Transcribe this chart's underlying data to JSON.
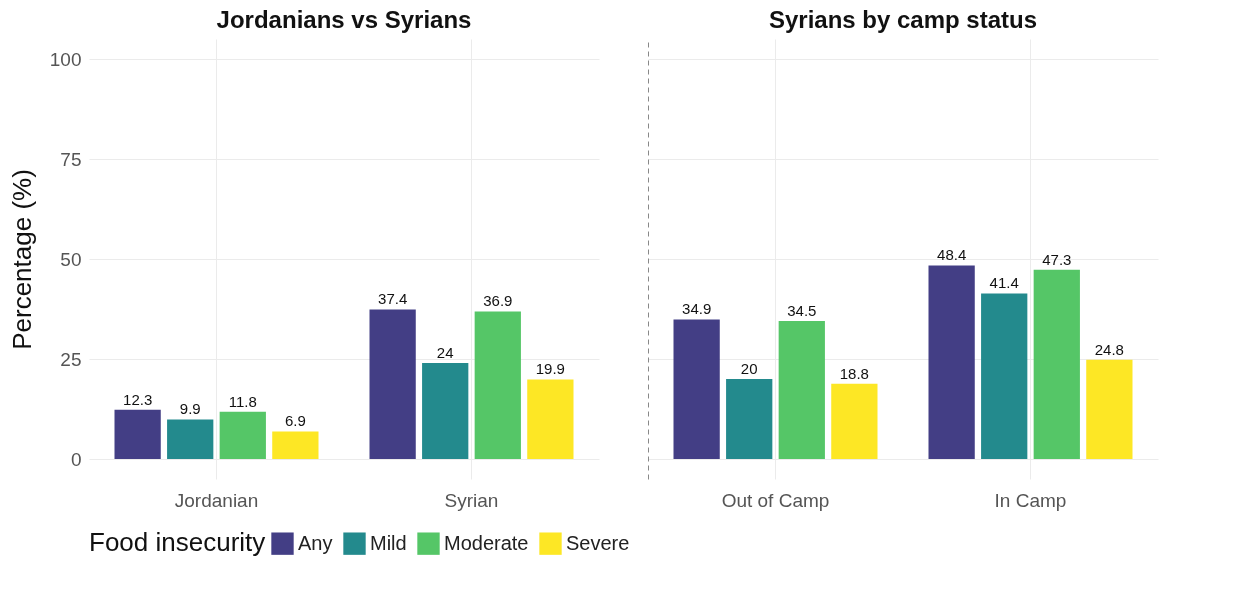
{
  "chart_data": [
    {
      "type": "bar",
      "title": "Jordanians vs Syrians",
      "ylabel": "Percentage (%)",
      "legend_title": "Food insecurity",
      "categories": [
        "Jordanian",
        "Syrian"
      ],
      "series": [
        {
          "name": "Any",
          "color": "#433e85",
          "values": [
            12.3,
            37.4
          ]
        },
        {
          "name": "Mild",
          "color": "#238a8d",
          "values": [
            9.9,
            24
          ]
        },
        {
          "name": "Moderate",
          "color": "#55c667",
          "values": [
            11.8,
            36.9
          ]
        },
        {
          "name": "Severe",
          "color": "#fde725",
          "values": [
            6.9,
            19.9
          ]
        }
      ],
      "ylim": [
        -5,
        105
      ],
      "yticks": [
        0,
        25,
        50,
        75,
        100
      ],
      "grid": true,
      "legend": "bottom",
      "data_labels": true
    },
    {
      "type": "bar",
      "title": "Syrians by camp status",
      "categories": [
        "Out of Camp",
        "In Camp"
      ],
      "series": [
        {
          "name": "Any",
          "color": "#433e85",
          "values": [
            34.9,
            48.4
          ]
        },
        {
          "name": "Mild",
          "color": "#238a8d",
          "values": [
            20,
            41.4
          ]
        },
        {
          "name": "Moderate",
          "color": "#55c667",
          "values": [
            34.5,
            47.3
          ]
        },
        {
          "name": "Severe",
          "color": "#fde725",
          "values": [
            18.8,
            24.8
          ]
        }
      ],
      "ylim": [
        -5,
        105
      ],
      "yticks": [
        0,
        25,
        50,
        75,
        100
      ],
      "grid": true,
      "data_labels": true,
      "tick_labels": "x"
    }
  ]
}
